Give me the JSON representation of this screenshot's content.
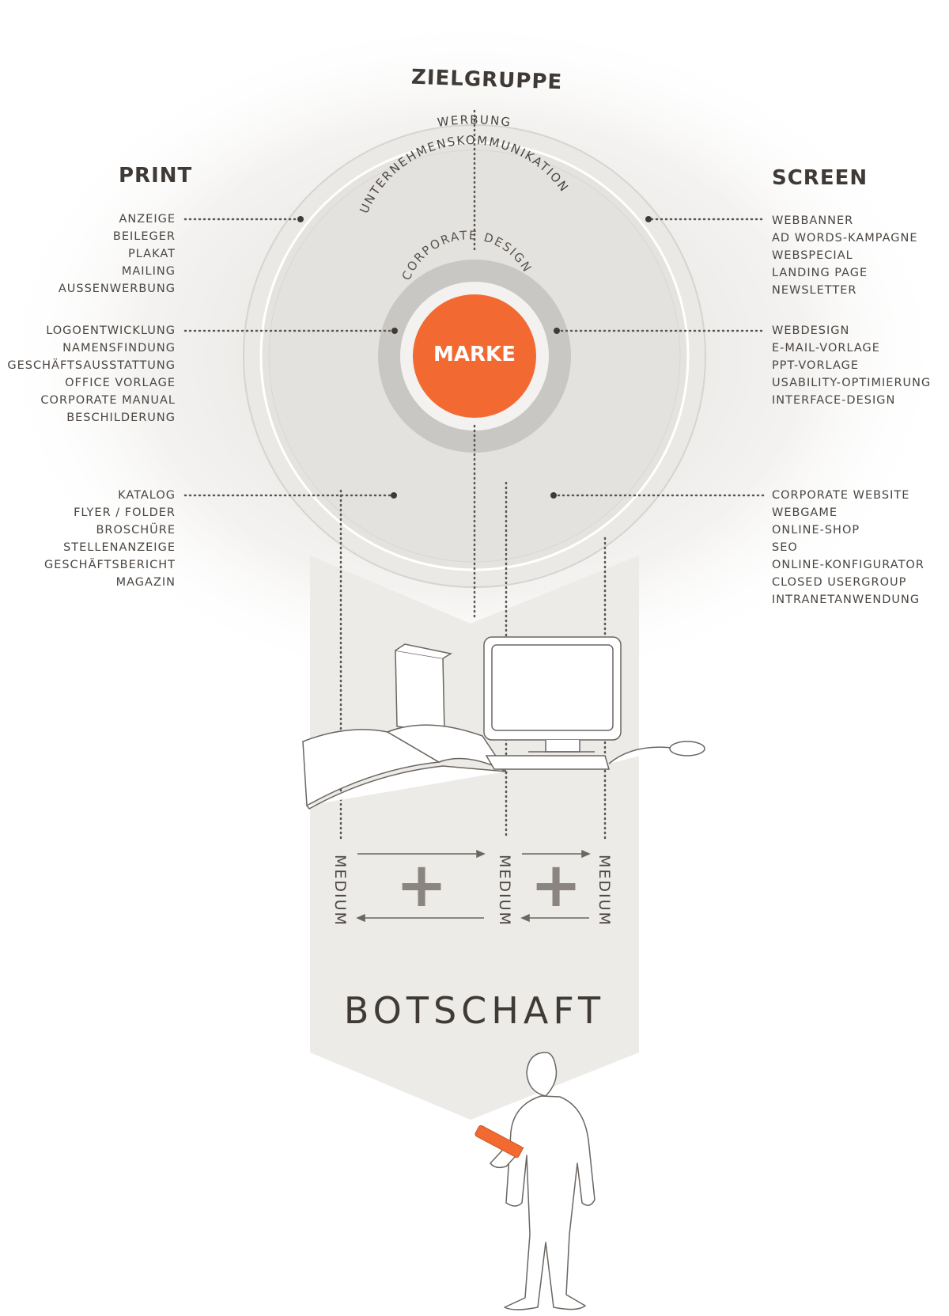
{
  "title": "ZIELGRUPPE",
  "core": {
    "marke": "MARKE",
    "corporate_design": "CORPORATE DESIGN",
    "unternehmenskommunikation": "UNTERNEHMENSKOMMUNIKATION",
    "werbung": "WERBUNG"
  },
  "print": {
    "heading": "PRINT",
    "group1": [
      "ANZEIGE",
      "BEILEGER",
      "PLAKAT",
      "MAILING",
      "AUSSENWERBUNG"
    ],
    "group2": [
      "LOGOENTWICKLUNG",
      "NAMENSFINDUNG",
      "GESCHÄFTSAUSSTATTUNG",
      "OFFICE VORLAGE",
      "CORPORATE MANUAL",
      "BESCHILDERUNG"
    ],
    "group3": [
      "KATALOG",
      "FLYER / FOLDER",
      "BROSCHÜRE",
      "STELLENANZEIGE",
      "GESCHÄFTSBERICHT",
      "MAGAZIN"
    ]
  },
  "screen": {
    "heading": "SCREEN",
    "group1": [
      "WEBBANNER",
      "AD WORDS-KAMPAGNE",
      "WEBSPECIAL",
      "LANDING PAGE",
      "NEWSLETTER"
    ],
    "group2": [
      "WEBDESIGN",
      "E-MAIL-VORLAGE",
      "PPT-VORLAGE",
      "USABILITY-OPTIMIERUNG",
      "INTERFACE-DESIGN"
    ],
    "group3": [
      "CORPORATE WEBSITE",
      "WEBGAME",
      "ONLINE-SHOP",
      "SEO",
      "ONLINE-KONFIGURATOR",
      "CLOSED USERGROUP",
      "INTRANETANWENDUNG"
    ]
  },
  "medium_label": "MEDIUM",
  "plus_sign": "+",
  "botschaft": "BOTSCHAFT",
  "colors": {
    "accent": "#f26a32",
    "ring_gray": "#c9c7c4",
    "ring_light": "#e8e6e3",
    "text": "#3f3a36",
    "band": "#ecebe8"
  }
}
